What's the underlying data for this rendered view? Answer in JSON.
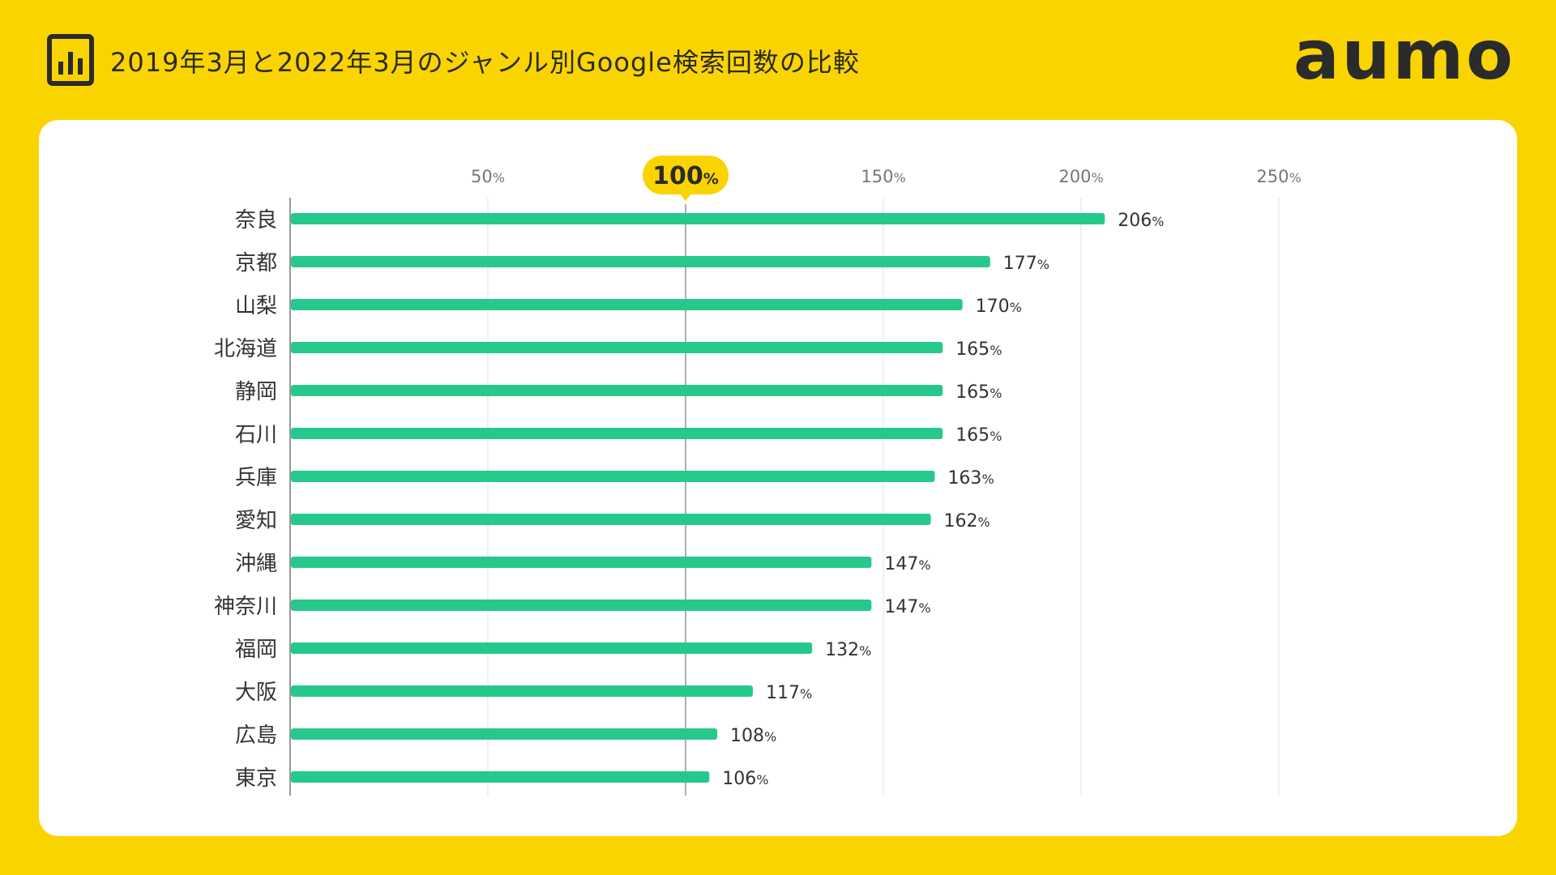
{
  "header": {
    "title": "2019年3月と2022年3月のジャンル別Google検索回数の比較",
    "logo": "aumo"
  },
  "colors": {
    "background": "#FAD400",
    "card": "#FFFFFF",
    "bar": "#26C98B",
    "highlight": "#FAD400",
    "grid": "#E6E6E6",
    "reference_line": "#999999",
    "text": "#333333"
  },
  "chart_data": {
    "type": "bar",
    "orientation": "horizontal",
    "title": "2019年3月と2022年3月のジャンル別Google検索回数の比較",
    "categories": [
      "奈良",
      "京都",
      "山梨",
      "北海道",
      "静岡",
      "石川",
      "兵庫",
      "愛知",
      "沖縄",
      "神奈川",
      "福岡",
      "大阪",
      "広島",
      "東京"
    ],
    "values": [
      206,
      177,
      170,
      165,
      165,
      165,
      163,
      162,
      147,
      147,
      132,
      117,
      108,
      106
    ],
    "unit": "%",
    "xlim": [
      0,
      250
    ],
    "xticks": [
      50,
      100,
      150,
      200,
      250
    ],
    "highlight_tick": 100,
    "grid": true,
    "xlabel": "",
    "ylabel": ""
  }
}
